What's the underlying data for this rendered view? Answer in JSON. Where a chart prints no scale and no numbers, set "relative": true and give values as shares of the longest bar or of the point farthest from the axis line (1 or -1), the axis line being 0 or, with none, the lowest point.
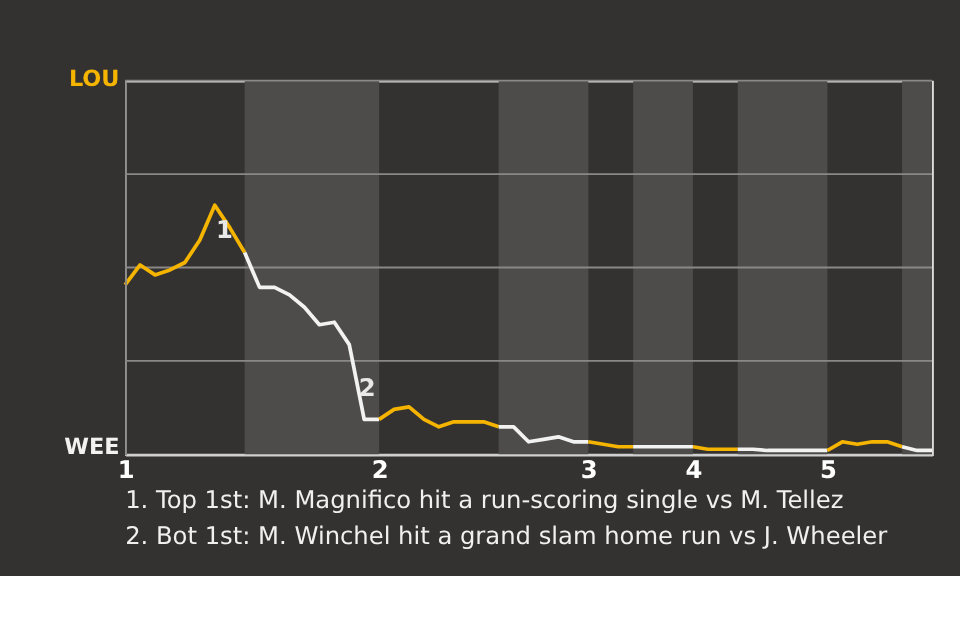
{
  "chart_data": {
    "type": "line",
    "relative": true,
    "categories": [
      "1",
      null,
      null,
      null,
      null,
      null,
      null,
      null,
      null,
      null,
      null,
      null,
      null,
      null,
      null,
      null,
      null,
      "2",
      null,
      null,
      null,
      null,
      null,
      null,
      null,
      null,
      null,
      null,
      null,
      null,
      null,
      "3",
      null,
      null,
      null,
      null,
      null,
      null,
      "4",
      null,
      null,
      null,
      null,
      null,
      null,
      null,
      null,
      "5",
      null,
      null,
      null,
      null,
      null,
      null,
      null
    ],
    "marker": "none",
    "ref_lines": [
      {
        "axis": "y",
        "value": 0.375,
        "color": "#8a8886"
      },
      {
        "axis": "y",
        "value": 0.75,
        "color": "#8a8886"
      },
      {
        "axis": "y",
        "value": 1.125,
        "color": "#8a8886"
      },
      {
        "axis": "y",
        "value": 1.5,
        "color": "#8a8886"
      }
    ],
    "line_style": "solid",
    "series": [
      {
        "color": "#f5b400",
        "values": [
          0.68,
          0.76,
          0.72,
          0.74,
          0.77,
          0.86,
          1,
          0.91,
          0.81,
          null,
          null,
          null,
          null,
          null,
          null,
          null,
          null,
          null,
          null,
          null,
          null,
          null,
          null,
          null,
          null,
          null,
          null,
          null,
          null,
          null,
          null,
          null,
          null,
          null,
          null,
          null,
          null,
          null,
          null,
          null,
          null,
          null,
          null,
          null,
          null,
          null,
          null,
          null,
          null,
          null,
          null,
          null,
          null,
          null,
          null
        ]
      },
      {
        "color": "#f2f2f2",
        "values": [
          null,
          null,
          null,
          null,
          null,
          null,
          null,
          null,
          0.81,
          0.67,
          0.67,
          0.64,
          0.59,
          0.52,
          0.53,
          0.44,
          0.14,
          0.14,
          null,
          null,
          null,
          null,
          null,
          null,
          null,
          null,
          null,
          null,
          null,
          null,
          null,
          null,
          null,
          null,
          null,
          null,
          null,
          null,
          null,
          null,
          null,
          null,
          null,
          null,
          null,
          null,
          null,
          null,
          null,
          null,
          null,
          null,
          null,
          null,
          null
        ]
      },
      {
        "color": "#f5b400",
        "values": [
          null,
          null,
          null,
          null,
          null,
          null,
          null,
          null,
          null,
          null,
          null,
          null,
          null,
          null,
          null,
          null,
          null,
          0.14,
          0.18,
          0.19,
          0.14,
          0.11,
          0.13,
          0.13,
          0.13,
          0.11,
          null,
          null,
          null,
          null,
          null,
          null,
          null,
          null,
          null,
          null,
          null,
          null,
          null,
          null,
          null,
          null,
          null,
          null,
          null,
          null,
          null,
          null,
          null,
          null,
          null,
          null,
          null,
          null,
          null
        ]
      },
      {
        "color": "#f2f2f2",
        "values": [
          null,
          null,
          null,
          null,
          null,
          null,
          null,
          null,
          null,
          null,
          null,
          null,
          null,
          null,
          null,
          null,
          null,
          null,
          null,
          null,
          null,
          null,
          null,
          null,
          null,
          0.11,
          0.11,
          0.05,
          0.06,
          0.07,
          0.05,
          0.05,
          null,
          null,
          null,
          null,
          null,
          null,
          null,
          null,
          null,
          null,
          null,
          null,
          null,
          null,
          null,
          null,
          null,
          null,
          null,
          null,
          null,
          null,
          null
        ]
      },
      {
        "color": "#f5b400",
        "values": [
          null,
          null,
          null,
          null,
          null,
          null,
          null,
          null,
          null,
          null,
          null,
          null,
          null,
          null,
          null,
          null,
          null,
          null,
          null,
          null,
          null,
          null,
          null,
          null,
          null,
          null,
          null,
          null,
          null,
          null,
          null,
          0.05,
          0.04,
          0.03,
          0.03,
          null,
          null,
          null,
          null,
          null,
          null,
          null,
          null,
          null,
          null,
          null,
          null,
          null,
          null,
          null,
          null,
          null,
          null,
          null,
          null
        ]
      },
      {
        "color": "#f2f2f2",
        "values": [
          null,
          null,
          null,
          null,
          null,
          null,
          null,
          null,
          null,
          null,
          null,
          null,
          null,
          null,
          null,
          null,
          null,
          null,
          null,
          null,
          null,
          null,
          null,
          null,
          null,
          null,
          null,
          null,
          null,
          null,
          null,
          null,
          null,
          null,
          0.03,
          0.03,
          0.03,
          0.03,
          0.03,
          null,
          null,
          null,
          null,
          null,
          null,
          null,
          null,
          null,
          null,
          null,
          null,
          null,
          null,
          null,
          null
        ]
      },
      {
        "color": "#f5b400",
        "values": [
          null,
          null,
          null,
          null,
          null,
          null,
          null,
          null,
          null,
          null,
          null,
          null,
          null,
          null,
          null,
          null,
          null,
          null,
          null,
          null,
          null,
          null,
          null,
          null,
          null,
          null,
          null,
          null,
          null,
          null,
          null,
          null,
          null,
          null,
          null,
          null,
          null,
          null,
          0.03,
          0.02,
          0.02,
          0.02,
          null,
          null,
          null,
          null,
          null,
          null,
          null,
          null,
          null,
          null,
          null,
          null,
          null
        ]
      },
      {
        "color": "#f2f2f2",
        "values": [
          null,
          null,
          null,
          null,
          null,
          null,
          null,
          null,
          null,
          null,
          null,
          null,
          null,
          null,
          null,
          null,
          null,
          null,
          null,
          null,
          null,
          null,
          null,
          null,
          null,
          null,
          null,
          null,
          null,
          null,
          null,
          null,
          null,
          null,
          null,
          null,
          null,
          null,
          null,
          null,
          null,
          0.02,
          0.02,
          0.015,
          0.015,
          0.015,
          0.015,
          0.015,
          null,
          null,
          null,
          null,
          null,
          null,
          null
        ]
      },
      {
        "color": "#f5b400",
        "values": [
          null,
          null,
          null,
          null,
          null,
          null,
          null,
          null,
          null,
          null,
          null,
          null,
          null,
          null,
          null,
          null,
          null,
          null,
          null,
          null,
          null,
          null,
          null,
          null,
          null,
          null,
          null,
          null,
          null,
          null,
          null,
          null,
          null,
          null,
          null,
          null,
          null,
          null,
          null,
          null,
          null,
          null,
          null,
          null,
          null,
          null,
          null,
          0.015,
          0.05,
          0.04,
          0.05,
          0.05,
          0.03,
          null,
          null
        ]
      },
      {
        "color": "#f2f2f2",
        "values": [
          null,
          null,
          null,
          null,
          null,
          null,
          null,
          null,
          null,
          null,
          null,
          null,
          null,
          null,
          null,
          null,
          null,
          null,
          null,
          null,
          null,
          null,
          null,
          null,
          null,
          null,
          null,
          null,
          null,
          null,
          null,
          null,
          null,
          null,
          null,
          null,
          null,
          null,
          null,
          null,
          null,
          null,
          null,
          null,
          null,
          null,
          null,
          null,
          null,
          null,
          null,
          null,
          0.03,
          0.015,
          0.015
        ]
      }
    ],
    "annotations": [
      "LOU",
      "WEE",
      "1",
      "2",
      "1. Top 1st: M. Magnifico hit a run-scoring single vs M. Tellez",
      "2. Bot 1st: M. Winchel hit a grand slam home run vs J. Wheeler"
    ]
  }
}
